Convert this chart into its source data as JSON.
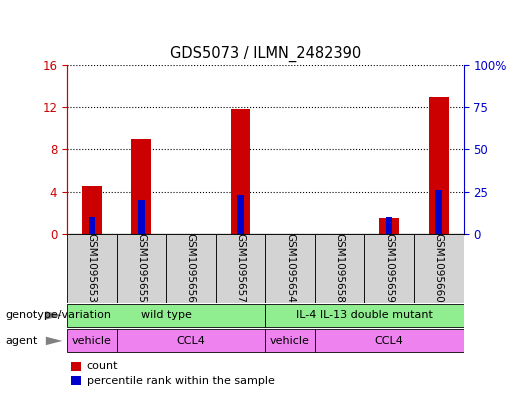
{
  "title": "GDS5073 / ILMN_2482390",
  "samples": [
    "GSM1095653",
    "GSM1095655",
    "GSM1095656",
    "GSM1095657",
    "GSM1095654",
    "GSM1095658",
    "GSM1095659",
    "GSM1095660"
  ],
  "counts": [
    4.5,
    9.0,
    0,
    11.8,
    0,
    0,
    1.5,
    13.0
  ],
  "percentiles": [
    10,
    20,
    0,
    23,
    0,
    0,
    10,
    26
  ],
  "ylim_left": [
    0,
    16
  ],
  "ylim_right": [
    0,
    100
  ],
  "yticks_left": [
    0,
    4,
    8,
    12,
    16
  ],
  "yticks_right": [
    0,
    25,
    50,
    75,
    100
  ],
  "ytick_labels_left": [
    "0",
    "4",
    "8",
    "12",
    "16"
  ],
  "ytick_labels_right": [
    "0",
    "25",
    "50",
    "75",
    "100%"
  ],
  "bar_color": "#cc0000",
  "percentile_color": "#0000cc",
  "bg_color": "#d3d3d3",
  "plot_bg": "#ffffff",
  "genotype_groups": [
    {
      "label": "wild type",
      "start": 0,
      "end": 4,
      "color": "#90ee90"
    },
    {
      "label": "IL-4 IL-13 double mutant",
      "start": 4,
      "end": 8,
      "color": "#90ee90"
    }
  ],
  "agent_groups": [
    {
      "label": "vehicle",
      "start": 0,
      "end": 1,
      "color": "#ee82ee"
    },
    {
      "label": "CCL4",
      "start": 1,
      "end": 4,
      "color": "#ee82ee"
    },
    {
      "label": "vehicle",
      "start": 4,
      "end": 5,
      "color": "#ee82ee"
    },
    {
      "label": "CCL4",
      "start": 5,
      "end": 8,
      "color": "#ee82ee"
    }
  ],
  "legend_count_label": "count",
  "legend_percentile_label": "percentile rank within the sample",
  "genotype_label": "genotype/variation",
  "agent_label": "agent"
}
